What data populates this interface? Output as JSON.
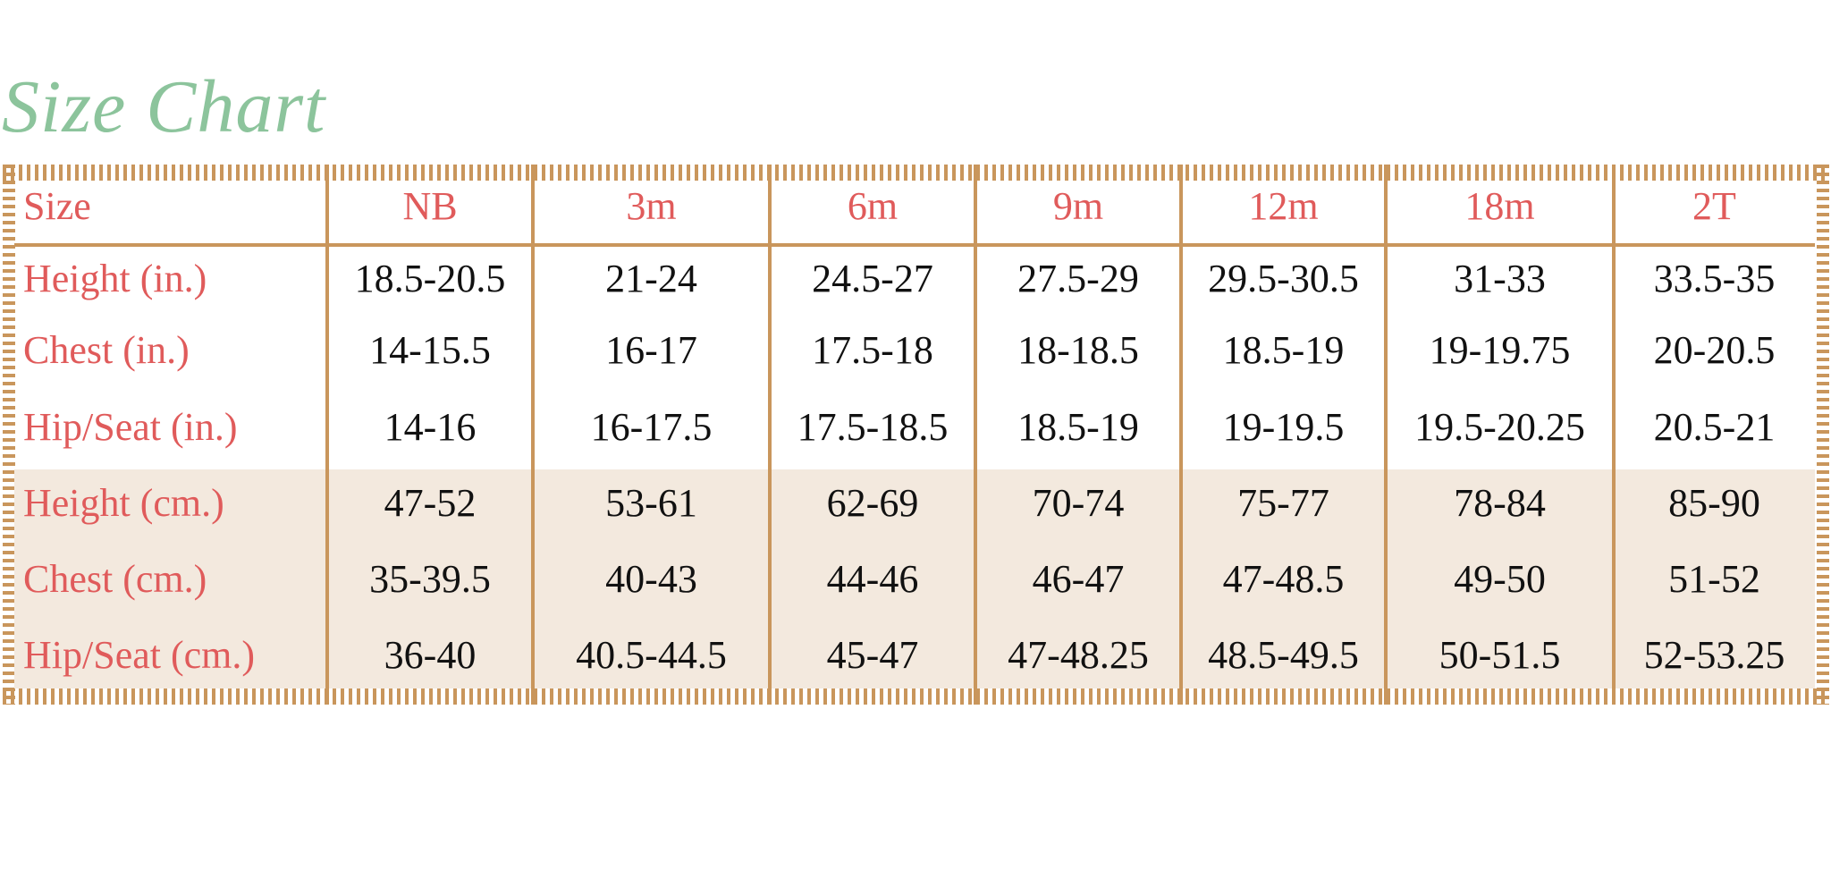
{
  "title": "Size Chart",
  "colors": {
    "title": "#8cc49c",
    "label": "#e05b5b",
    "border": "#c9965c",
    "metric_background": "#f3e9de"
  },
  "header": {
    "label": "Size",
    "sizes": [
      "NB",
      "3m",
      "6m",
      "9m",
      "12m",
      "18m",
      "2T"
    ]
  },
  "rows": [
    {
      "label": "Height (in.)",
      "values": [
        "18.5-20.5",
        "21-24",
        "24.5-27",
        "27.5-29",
        "29.5-30.5",
        "31-33",
        "33.5-35"
      ]
    },
    {
      "label": "Chest (in.)",
      "values": [
        "14-15.5",
        "16-17",
        "17.5-18",
        "18-18.5",
        "18.5-19",
        "19-19.75",
        "20-20.5"
      ]
    },
    {
      "label": "Hip/Seat (in.)",
      "values": [
        "14-16",
        "16-17.5",
        "17.5-18.5",
        "18.5-19",
        "19-19.5",
        "19.5-20.25",
        "20.5-21"
      ]
    },
    {
      "label": "Height (cm.)",
      "values": [
        "47-52",
        "53-61",
        "62-69",
        "70-74",
        "75-77",
        "78-84",
        "85-90"
      ]
    },
    {
      "label": "Chest (cm.)",
      "values": [
        "35-39.5",
        "40-43",
        "44-46",
        "46-47",
        "47-48.5",
        "49-50",
        "51-52"
      ]
    },
    {
      "label": "Hip/Seat (cm.)",
      "values": [
        "36-40",
        "40.5-44.5",
        "45-47",
        "47-48.25",
        "48.5-49.5",
        "50-51.5",
        "52-53.25"
      ]
    }
  ]
}
